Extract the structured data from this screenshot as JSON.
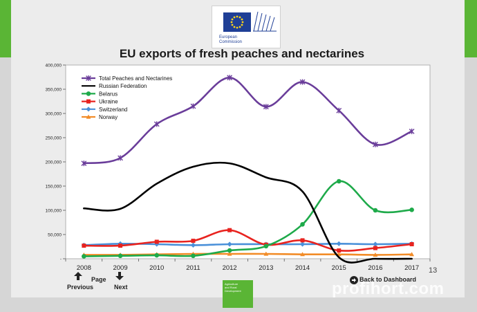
{
  "logo": {
    "text": "European\nCommission"
  },
  "bottom_logo": {
    "text": "Agriculture\nand Rural\nDevelopment"
  },
  "navigation": {
    "page_label": "Page",
    "previous_label": "Previous",
    "next_label": "Next",
    "back_label": "Back to Dashboard",
    "page_number": "13"
  },
  "watermark": "profihort.com",
  "chart_data": {
    "type": "line",
    "title": "EU exports of fresh peaches and nectarines",
    "x": [
      "2008",
      "2009",
      "2010",
      "2011",
      "2012",
      "2013",
      "2014",
      "2015",
      "2016",
      "2017"
    ],
    "ylim": [
      0,
      400000
    ],
    "yticks": [
      "-",
      "50,000",
      "100,000",
      "150,000",
      "200,000",
      "250,000",
      "300,000",
      "350,000",
      "400,000"
    ],
    "legend_position": "top-left",
    "grid": false,
    "series": [
      {
        "name": "Total Peaches and Nectarines",
        "color": "#6a3d9a",
        "marker": "cross",
        "values": [
          197000,
          208000,
          278000,
          315000,
          374000,
          314000,
          365000,
          306000,
          236000,
          263000
        ]
      },
      {
        "name": "Russian Federation",
        "color": "#000000",
        "marker": "none",
        "values": [
          104000,
          103000,
          155000,
          190000,
          197000,
          168000,
          139000,
          3000,
          0,
          0
        ]
      },
      {
        "name": "Belarus",
        "color": "#1eaa4a",
        "marker": "circle",
        "values": [
          5000,
          6000,
          7000,
          6000,
          17000,
          26000,
          71000,
          160000,
          100000,
          101000
        ]
      },
      {
        "name": "Ukraine",
        "color": "#e8231f",
        "marker": "square",
        "values": [
          27000,
          27000,
          35000,
          37000,
          59000,
          29000,
          38000,
          17000,
          22000,
          30000
        ]
      },
      {
        "name": "Switzerland",
        "color": "#4a90d9",
        "marker": "diamond",
        "values": [
          28000,
          31000,
          30000,
          28000,
          30000,
          30000,
          30000,
          31000,
          30000,
          31000
        ]
      },
      {
        "name": "Norway",
        "color": "#f28c28",
        "marker": "triangle",
        "values": [
          8000,
          8000,
          9000,
          10000,
          10000,
          10000,
          9000,
          9000,
          8000,
          9000
        ]
      }
    ]
  }
}
